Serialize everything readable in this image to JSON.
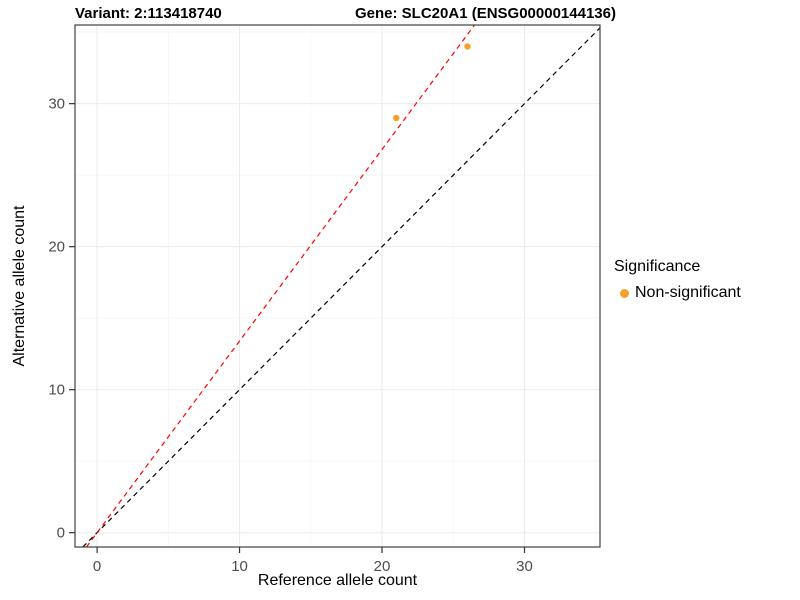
{
  "titles": {
    "left": "Variant: 2:113418740",
    "right": "Gene: SLC20A1 (ENSG00000144136)"
  },
  "chart_data": {
    "type": "scatter",
    "xlabel": "Reference allele count",
    "ylabel": "Alternative allele count",
    "xlim": [
      -1.55,
      35.3
    ],
    "ylim": [
      -1.0,
      35.5
    ],
    "xticks": [
      0,
      10,
      20,
      30
    ],
    "yticks": [
      0,
      10,
      20,
      30
    ],
    "grid": true,
    "points": [
      {
        "x": 21,
        "y": 29,
        "series": "Non-significant"
      },
      {
        "x": 26,
        "y": 34,
        "series": "Non-significant"
      }
    ],
    "lines": [
      {
        "name": "identity-line",
        "slope": 1.0,
        "intercept": 0,
        "color": "#000000",
        "dash": "5,4"
      },
      {
        "name": "fit-line",
        "slope": 1.34,
        "intercept": 0,
        "color": "#FF0000",
        "dash": "5,4"
      }
    ],
    "legend": {
      "title": "Significance",
      "position": "right",
      "entries": [
        {
          "label": "Non-significant",
          "color": "#F5A02B"
        }
      ]
    },
    "colors": {
      "point": "#F5A02B",
      "grid_major": "#EBEBEB",
      "grid_minor": "#F6F6F6",
      "panel_border": "#404040",
      "tick": "#333333",
      "tick_label": "#4D4D4D"
    }
  }
}
